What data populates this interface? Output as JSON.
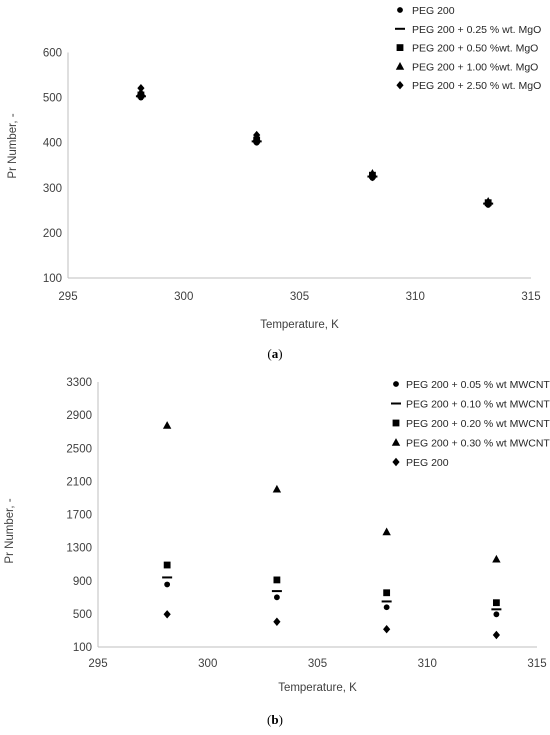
{
  "chart_data": [
    {
      "type": "scatter",
      "xlabel": "Temperature, K",
      "ylabel": "Pr Number, -",
      "xlim": [
        295,
        315
      ],
      "ylim": [
        100,
        650
      ],
      "xticks": [
        295,
        300,
        305,
        310,
        315
      ],
      "yticks": [
        100,
        200,
        300,
        400,
        500,
        600
      ],
      "grid": false,
      "legend": "top-right",
      "caption": "(a)",
      "x": [
        298.15,
        303.15,
        308.15,
        313.15
      ],
      "series": [
        {
          "name": "PEG 200",
          "marker": "circle",
          "values": [
            500,
            400,
            322,
            262
          ]
        },
        {
          "name": "PEG 200 + 0.25 % wt. MgO",
          "marker": "dash",
          "values": [
            503,
            403,
            325,
            265
          ]
        },
        {
          "name": "PEG 200 + 0.50 %wt.  MgO",
          "marker": "square",
          "values": [
            506,
            406,
            328,
            267
          ]
        },
        {
          "name": "PEG 200 + 1.00 %wt. MgO",
          "marker": "triangle",
          "values": [
            512,
            410,
            332,
            270
          ]
        },
        {
          "name": "PEG 200 + 2.50 % wt. MgO",
          "marker": "diamond",
          "values": [
            521,
            417,
            324,
            268
          ]
        }
      ]
    },
    {
      "type": "scatter",
      "xlabel": "Temperature, K",
      "ylabel": "Pr Number, -",
      "xlim": [
        295,
        315
      ],
      "ylim": [
        100,
        3300
      ],
      "xticks": [
        295,
        300,
        305,
        310,
        315
      ],
      "yticks": [
        100,
        500,
        900,
        1300,
        1700,
        2100,
        2500,
        2900,
        3300
      ],
      "grid": false,
      "legend": "top-right",
      "caption": "(b)",
      "x": [
        298.15,
        303.15,
        308.15,
        313.15
      ],
      "series": [
        {
          "name": "PEG 200 + 0.05 % wt  MWCNT",
          "marker": "circle",
          "values": [
            855,
            700,
            580,
            495
          ]
        },
        {
          "name": "PEG 200 + 0.10 % wt MWCNT",
          "marker": "dash",
          "values": [
            940,
            775,
            650,
            555
          ]
        },
        {
          "name": "PEG 200 + 0.20 % wt MWCNT",
          "marker": "square",
          "values": [
            1090,
            910,
            755,
            635
          ]
        },
        {
          "name": "PEG 200 + 0.30 % wt MWCNT",
          "marker": "triangle",
          "values": [
            2775,
            2005,
            1490,
            1160
          ]
        },
        {
          "name": "PEG 200",
          "marker": "diamond",
          "values": [
            495,
            405,
            315,
            245
          ]
        }
      ]
    }
  ]
}
